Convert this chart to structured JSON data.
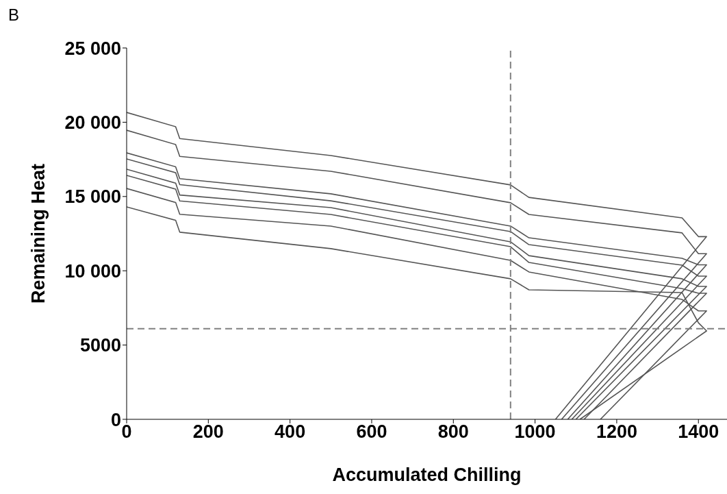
{
  "chart_data": {
    "type": "line",
    "xlabel": "Accumulated Chilling",
    "ylabel": "Remaining Heat",
    "annotations": [
      "B"
    ],
    "xlim": [
      0,
      1470
    ],
    "xticks": [
      0,
      200,
      400,
      600,
      800,
      1000,
      1200,
      1400
    ],
    "ylim": [
      0,
      25000
    ],
    "yticks": [
      0,
      {
        "value": 5000,
        "label": "5000"
      },
      {
        "value": 10000,
        "label": "10 000"
      },
      {
        "value": 15000,
        "label": "15 000"
      },
      {
        "value": 20000,
        "label": "20 000"
      },
      {
        "value": 25000,
        "label": "25 000"
      }
    ],
    "ref_lines": [
      {
        "axis": "x",
        "value": 940,
        "color": "#808080",
        "line_style": "dashed"
      },
      {
        "axis": "y",
        "value": 6100,
        "color": "#808080",
        "line_style": "dashed"
      }
    ],
    "series": [
      {
        "color": "#555555",
        "x": [
          0,
          120,
          130,
          500,
          940,
          985,
          1360,
          1400,
          1420,
          1050
        ],
        "values": [
          20660,
          19700,
          18900,
          17760,
          15780,
          14940,
          13560,
          12300,
          12300,
          0
        ]
      },
      {
        "color": "#555555",
        "x": [
          0,
          120,
          130,
          500,
          940,
          985,
          1360,
          1400,
          1420,
          1065
        ],
        "values": [
          19460,
          18500,
          17700,
          16700,
          14580,
          13790,
          12550,
          11150,
          11150,
          0
        ]
      },
      {
        "color": "#555555",
        "x": [
          0,
          120,
          130,
          500,
          940,
          985,
          1360,
          1400,
          1420,
          1080
        ],
        "values": [
          17940,
          17000,
          16200,
          15180,
          13010,
          12220,
          10840,
          10400,
          10400,
          0
        ]
      },
      {
        "color": "#555555",
        "x": [
          0,
          120,
          130,
          500,
          940,
          985,
          1360,
          1400,
          1420,
          1090
        ],
        "values": [
          17530,
          16600,
          15800,
          14710,
          12640,
          11760,
          10380,
          9640,
          9640,
          0
        ]
      },
      {
        "color": "#555555",
        "x": [
          0,
          120,
          130,
          500,
          940,
          985,
          1360,
          1400,
          1420,
          1100
        ],
        "values": [
          16840,
          15900,
          15100,
          14250,
          11950,
          11020,
          9460,
          8950,
          8950,
          0
        ]
      },
      {
        "color": "#555555",
        "x": [
          0,
          120,
          130,
          500,
          940,
          985,
          1360,
          1400,
          1420,
          1120
        ],
        "values": [
          16420,
          15500,
          14700,
          13790,
          11620,
          10560,
          8800,
          8490,
          8490,
          0
        ]
      },
      {
        "color": "#555555",
        "x": [
          0,
          120,
          130,
          500,
          940,
          985,
          1360,
          1400,
          1420,
          1160
        ],
        "values": [
          15540,
          14600,
          13800,
          13010,
          10700,
          9920,
          8070,
          7300,
          7300,
          0
        ]
      },
      {
        "color": "#555555",
        "x": [
          0,
          120,
          130,
          500,
          940,
          985,
          1360,
          1400,
          1420,
          1110
        ],
        "values": [
          14300,
          13400,
          12600,
          11490,
          9460,
          8720,
          8530,
          6500,
          5950,
          0
        ]
      }
    ]
  }
}
